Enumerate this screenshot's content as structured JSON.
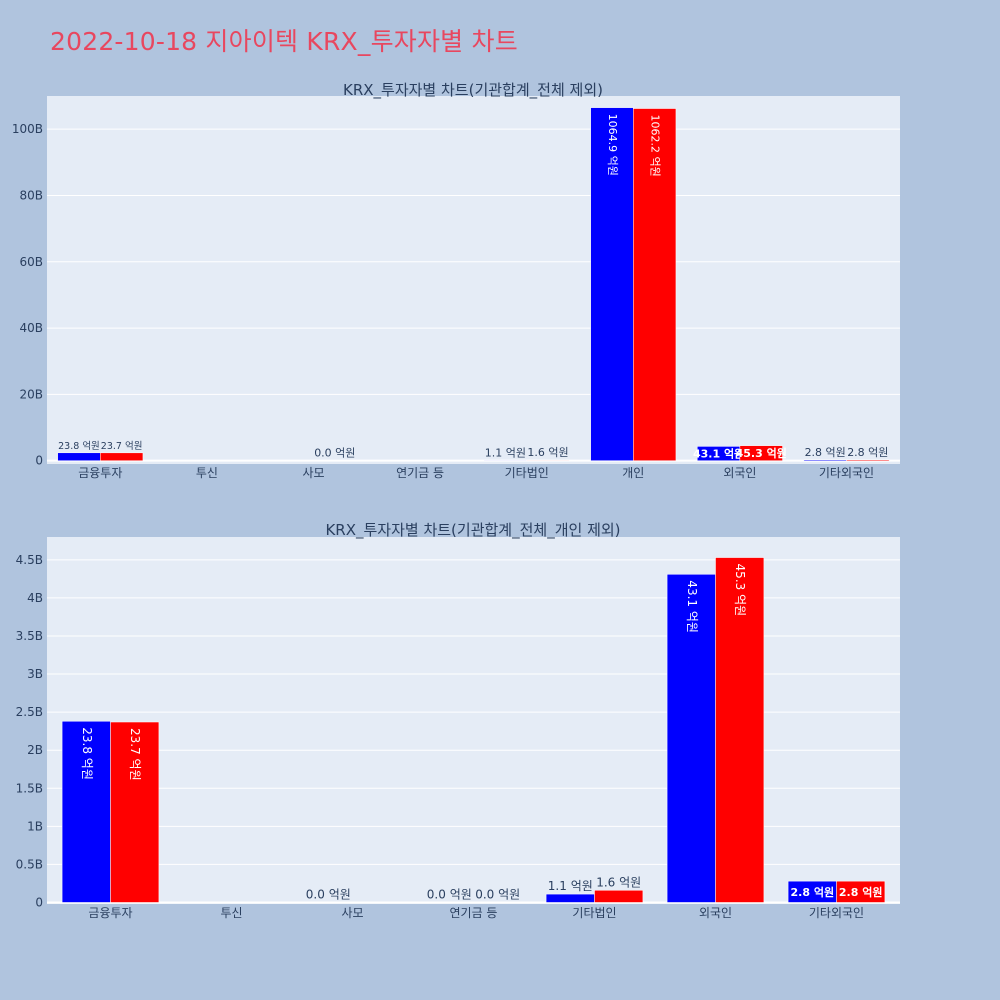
{
  "title": "2022-10-18 지아이텍 KRX_투자자별 차트",
  "colors": {
    "background": "#b0c4de",
    "plot_bg": "#e5ecf6",
    "title": "#e8475f",
    "series_1": "#0000ff",
    "series_2": "#ff0000",
    "text": "#2a3f5f"
  },
  "chart_data": [
    {
      "type": "bar",
      "title": "KRX_투자자별 차트(기관합계_전체 제외)",
      "categories": [
        "금융투자",
        "투신",
        "사모",
        "연기금 등",
        "기타법인",
        "개인",
        "외국인",
        "기타외국인"
      ],
      "ylim": [
        -0.1,
        11.0
      ],
      "yunit": "B",
      "yticks": [
        0,
        2,
        4,
        6,
        8,
        10
      ],
      "ytick_labels": [
        "0",
        "20B",
        "40B",
        "60B",
        "80B",
        "100B"
      ],
      "grid": true,
      "series": [
        {
          "values": [
            0.238,
            0,
            0,
            0,
            0.011,
            10.649,
            0.431,
            0.028
          ],
          "labels": [
            "23.8 억원",
            "",
            "",
            "",
            "1.1 억원",
            "1064.9 억원",
            "43.1 억원",
            "2.8 억원"
          ]
        },
        {
          "values": [
            0.237,
            0,
            0,
            0,
            0.016,
            10.622,
            0.453,
            0.028
          ],
          "labels": [
            "23.7 억원",
            "",
            "0.0 억원",
            "",
            "1.6 억원",
            "1062.2 억원",
            "45.3 억원",
            "2.8 억원"
          ]
        }
      ]
    },
    {
      "type": "bar",
      "title": "KRX_투자자별 차트(기관합계_전체_개인 제외)",
      "categories": [
        "금융투자",
        "투신",
        "사모",
        "연기금 등",
        "기타법인",
        "외국인",
        "기타외국인"
      ],
      "ylim": [
        -0.02,
        4.8
      ],
      "yunit": "B",
      "yticks": [
        0,
        0.5,
        1,
        1.5,
        2,
        2.5,
        3,
        3.5,
        4,
        4.5
      ],
      "ytick_labels": [
        "0",
        "0.5B",
        "1B",
        "1.5B",
        "2B",
        "2.5B",
        "3B",
        "3.5B",
        "4B",
        "4.5B"
      ],
      "grid": true,
      "series": [
        {
          "values": [
            2.38,
            0,
            0,
            0,
            0.11,
            4.31,
            0.28
          ],
          "labels": [
            "23.8 억원",
            "",
            "0.0 억원",
            "0.0 억원",
            "1.1 억원",
            "43.1 억원",
            "2.8 억원"
          ]
        },
        {
          "values": [
            2.37,
            0,
            0,
            0,
            0.16,
            4.53,
            0.28
          ],
          "labels": [
            "23.7 억원",
            "",
            "",
            "0.0 억원",
            "1.6 억원",
            "45.3 억원",
            "2.8 억원"
          ]
        }
      ]
    }
  ]
}
